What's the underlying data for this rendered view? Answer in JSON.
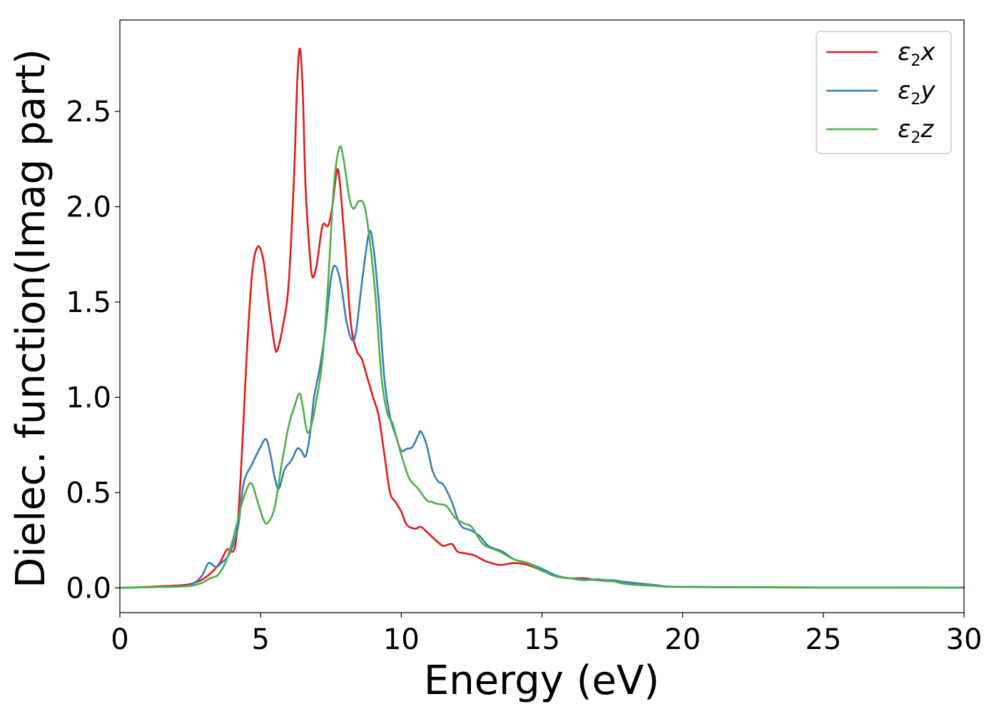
{
  "chart_data": {
    "type": "line",
    "title": "",
    "xlabel": "Energy (eV)",
    "ylabel": "Dielec. function(Imag part)",
    "xlim": [
      0,
      30
    ],
    "ylim": [
      -0.13,
      2.98
    ],
    "xticks": [
      0,
      5,
      10,
      15,
      20,
      25,
      30
    ],
    "yticks": [
      0.0,
      0.5,
      1.0,
      1.5,
      2.0,
      2.5
    ],
    "xtick_labels": [
      "0",
      "5",
      "10",
      "15",
      "20",
      "25",
      "30"
    ],
    "ytick_labels": [
      "0.0",
      "0.5",
      "1.0",
      "1.5",
      "2.0",
      "2.5"
    ],
    "grid": false,
    "legend_position": "top-right",
    "series": [
      {
        "name": "ε₂x",
        "legend_base": "ε",
        "legend_sub": "2",
        "legend_var": "x",
        "color": "#e41a1c",
        "points": [
          [
            0,
            0
          ],
          [
            1,
            0.005
          ],
          [
            2,
            0.012
          ],
          [
            2.5,
            0.02
          ],
          [
            3,
            0.05
          ],
          [
            3.5,
            0.12
          ],
          [
            3.8,
            0.2
          ],
          [
            4.1,
            0.22
          ],
          [
            4.3,
            0.6
          ],
          [
            4.5,
            1.2
          ],
          [
            4.7,
            1.65
          ],
          [
            4.9,
            1.79
          ],
          [
            5.1,
            1.72
          ],
          [
            5.3,
            1.48
          ],
          [
            5.5,
            1.27
          ],
          [
            5.6,
            1.25
          ],
          [
            5.8,
            1.38
          ],
          [
            6.0,
            1.6
          ],
          [
            6.2,
            2.2
          ],
          [
            6.3,
            2.65
          ],
          [
            6.4,
            2.83
          ],
          [
            6.5,
            2.6
          ],
          [
            6.6,
            2.1
          ],
          [
            6.75,
            1.75
          ],
          [
            6.85,
            1.63
          ],
          [
            7.0,
            1.7
          ],
          [
            7.2,
            1.9
          ],
          [
            7.4,
            1.9
          ],
          [
            7.55,
            2.0
          ],
          [
            7.7,
            2.18
          ],
          [
            7.8,
            2.15
          ],
          [
            8.0,
            1.8
          ],
          [
            8.2,
            1.4
          ],
          [
            8.4,
            1.25
          ],
          [
            8.6,
            1.2
          ],
          [
            8.8,
            1.1
          ],
          [
            9.0,
            1.0
          ],
          [
            9.2,
            0.9
          ],
          [
            9.4,
            0.7
          ],
          [
            9.6,
            0.5
          ],
          [
            9.8,
            0.45
          ],
          [
            10.0,
            0.4
          ],
          [
            10.2,
            0.33
          ],
          [
            10.5,
            0.31
          ],
          [
            10.7,
            0.32
          ],
          [
            11.0,
            0.28
          ],
          [
            11.3,
            0.24
          ],
          [
            11.5,
            0.22
          ],
          [
            11.8,
            0.23
          ],
          [
            12.0,
            0.19
          ],
          [
            12.3,
            0.18
          ],
          [
            12.6,
            0.17
          ],
          [
            13.0,
            0.14
          ],
          [
            13.5,
            0.12
          ],
          [
            14.0,
            0.13
          ],
          [
            14.5,
            0.12
          ],
          [
            15.0,
            0.09
          ],
          [
            15.5,
            0.06
          ],
          [
            16.0,
            0.05
          ],
          [
            16.5,
            0.05
          ],
          [
            17.0,
            0.04
          ],
          [
            17.5,
            0.035
          ],
          [
            18.0,
            0.03
          ],
          [
            19.0,
            0.015
          ],
          [
            20.0,
            0.005
          ],
          [
            25.0,
            0.002
          ],
          [
            30.0,
            0.001
          ]
        ]
      },
      {
        "name": "ε₂y",
        "legend_base": "ε",
        "legend_sub": "2",
        "legend_var": "y",
        "color": "#377eb8",
        "points": [
          [
            0,
            0
          ],
          [
            1,
            0.003
          ],
          [
            2,
            0.008
          ],
          [
            2.5,
            0.015
          ],
          [
            2.9,
            0.06
          ],
          [
            3.15,
            0.13
          ],
          [
            3.4,
            0.11
          ],
          [
            3.6,
            0.13
          ],
          [
            3.9,
            0.18
          ],
          [
            4.2,
            0.32
          ],
          [
            4.4,
            0.55
          ],
          [
            4.7,
            0.65
          ],
          [
            5.0,
            0.74
          ],
          [
            5.2,
            0.78
          ],
          [
            5.35,
            0.7
          ],
          [
            5.5,
            0.58
          ],
          [
            5.65,
            0.52
          ],
          [
            5.85,
            0.62
          ],
          [
            6.1,
            0.67
          ],
          [
            6.3,
            0.73
          ],
          [
            6.45,
            0.72
          ],
          [
            6.6,
            0.69
          ],
          [
            6.75,
            0.8
          ],
          [
            6.9,
            1.0
          ],
          [
            7.1,
            1.15
          ],
          [
            7.3,
            1.35
          ],
          [
            7.5,
            1.62
          ],
          [
            7.65,
            1.69
          ],
          [
            7.85,
            1.6
          ],
          [
            8.05,
            1.4
          ],
          [
            8.25,
            1.3
          ],
          [
            8.4,
            1.35
          ],
          [
            8.6,
            1.6
          ],
          [
            8.85,
            1.86
          ],
          [
            9.0,
            1.8
          ],
          [
            9.2,
            1.5
          ],
          [
            9.4,
            1.1
          ],
          [
            9.6,
            0.9
          ],
          [
            9.8,
            0.8
          ],
          [
            10.0,
            0.72
          ],
          [
            10.2,
            0.73
          ],
          [
            10.4,
            0.74
          ],
          [
            10.6,
            0.8
          ],
          [
            10.7,
            0.82
          ],
          [
            10.9,
            0.75
          ],
          [
            11.1,
            0.62
          ],
          [
            11.3,
            0.56
          ],
          [
            11.5,
            0.54
          ],
          [
            11.8,
            0.45
          ],
          [
            12.1,
            0.33
          ],
          [
            12.5,
            0.3
          ],
          [
            12.8,
            0.27
          ],
          [
            13.1,
            0.22
          ],
          [
            13.6,
            0.19
          ],
          [
            14.0,
            0.15
          ],
          [
            14.5,
            0.13
          ],
          [
            15.0,
            0.1
          ],
          [
            15.5,
            0.065
          ],
          [
            16.0,
            0.05
          ],
          [
            16.5,
            0.045
          ],
          [
            17.0,
            0.04
          ],
          [
            17.5,
            0.04
          ],
          [
            18.0,
            0.03
          ],
          [
            19.0,
            0.015
          ],
          [
            20.0,
            0.005
          ],
          [
            25.0,
            0.002
          ],
          [
            30.0,
            0.001
          ]
        ]
      },
      {
        "name": "ε₂z",
        "legend_base": "ε",
        "legend_sub": "2",
        "legend_var": "z",
        "color": "#4daf4a",
        "points": [
          [
            0,
            0
          ],
          [
            1,
            0.003
          ],
          [
            2,
            0.006
          ],
          [
            2.5,
            0.01
          ],
          [
            2.9,
            0.025
          ],
          [
            3.2,
            0.05
          ],
          [
            3.5,
            0.07
          ],
          [
            3.8,
            0.15
          ],
          [
            4.1,
            0.3
          ],
          [
            4.35,
            0.45
          ],
          [
            4.65,
            0.55
          ],
          [
            4.9,
            0.45
          ],
          [
            5.1,
            0.36
          ],
          [
            5.25,
            0.34
          ],
          [
            5.5,
            0.42
          ],
          [
            5.75,
            0.65
          ],
          [
            6.0,
            0.85
          ],
          [
            6.2,
            0.95
          ],
          [
            6.38,
            1.02
          ],
          [
            6.5,
            0.95
          ],
          [
            6.65,
            0.82
          ],
          [
            6.8,
            0.85
          ],
          [
            7.0,
            1.0
          ],
          [
            7.2,
            1.2
          ],
          [
            7.4,
            1.6
          ],
          [
            7.6,
            2.1
          ],
          [
            7.8,
            2.31
          ],
          [
            7.95,
            2.25
          ],
          [
            8.15,
            2.05
          ],
          [
            8.3,
            1.99
          ],
          [
            8.5,
            2.03
          ],
          [
            8.7,
            2.0
          ],
          [
            8.9,
            1.8
          ],
          [
            9.1,
            1.5
          ],
          [
            9.3,
            1.1
          ],
          [
            9.5,
            0.92
          ],
          [
            9.7,
            0.86
          ],
          [
            9.9,
            0.75
          ],
          [
            10.1,
            0.65
          ],
          [
            10.3,
            0.57
          ],
          [
            10.6,
            0.52
          ],
          [
            10.9,
            0.46
          ],
          [
            11.1,
            0.45
          ],
          [
            11.3,
            0.44
          ],
          [
            11.6,
            0.43
          ],
          [
            11.9,
            0.37
          ],
          [
            12.2,
            0.34
          ],
          [
            12.5,
            0.32
          ],
          [
            12.8,
            0.25
          ],
          [
            13.0,
            0.22
          ],
          [
            13.5,
            0.19
          ],
          [
            14.0,
            0.15
          ],
          [
            14.5,
            0.13
          ],
          [
            15.0,
            0.09
          ],
          [
            15.5,
            0.06
          ],
          [
            16.0,
            0.05
          ],
          [
            16.5,
            0.04
          ],
          [
            17.0,
            0.045
          ],
          [
            17.5,
            0.035
          ],
          [
            18.0,
            0.02
          ],
          [
            19.0,
            0.01
          ],
          [
            20.0,
            0.004
          ],
          [
            25.0,
            0.001
          ],
          [
            30.0,
            0.0005
          ]
        ]
      }
    ]
  }
}
